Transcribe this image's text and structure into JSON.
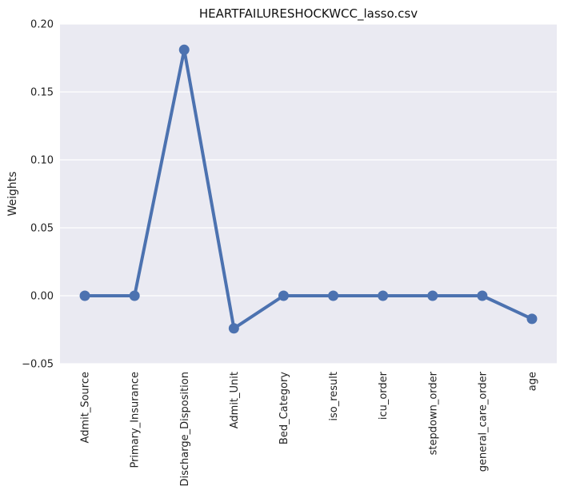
{
  "chart_data": {
    "type": "line",
    "title": "HEARTFAILURESHOCKWCC_lasso.csv",
    "xlabel": "",
    "ylabel": "Weights",
    "categories": [
      "Admit_Source",
      "Primary_Insurance",
      "Discharge_Disposition",
      "Admit_Unit",
      "Bed_Category",
      "iso_result",
      "icu_order",
      "stepdown_order",
      "general_care_order",
      "age"
    ],
    "values": [
      0.0,
      0.0,
      0.181,
      -0.024,
      0.0,
      0.0,
      0.0,
      0.0,
      0.0,
      -0.017
    ],
    "ylim": [
      -0.05,
      0.2
    ],
    "yticks": [
      -0.05,
      0.0,
      0.05,
      0.1,
      0.15,
      0.2
    ],
    "ytick_labels": [
      "−0.05",
      "0.00",
      "0.05",
      "0.10",
      "0.15",
      "0.20"
    ],
    "grid": true,
    "colors": {
      "background": "#eaeaf2",
      "grid": "#ffffff",
      "line": "#4c72b0"
    }
  }
}
